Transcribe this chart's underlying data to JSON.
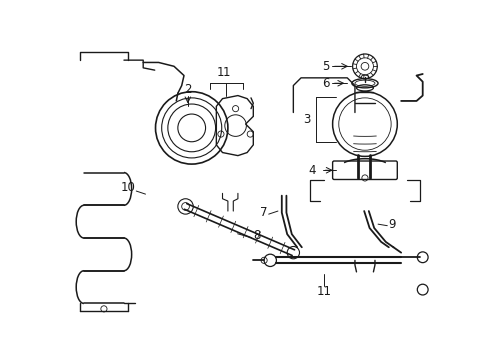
{
  "background_color": "#ffffff",
  "line_color": "#1a1a1a",
  "fig_width": 4.89,
  "fig_height": 3.6,
  "dpi": 100,
  "font_size": 8.5,
  "xlim": [
    0,
    489
  ],
  "ylim": [
    0,
    360
  ]
}
